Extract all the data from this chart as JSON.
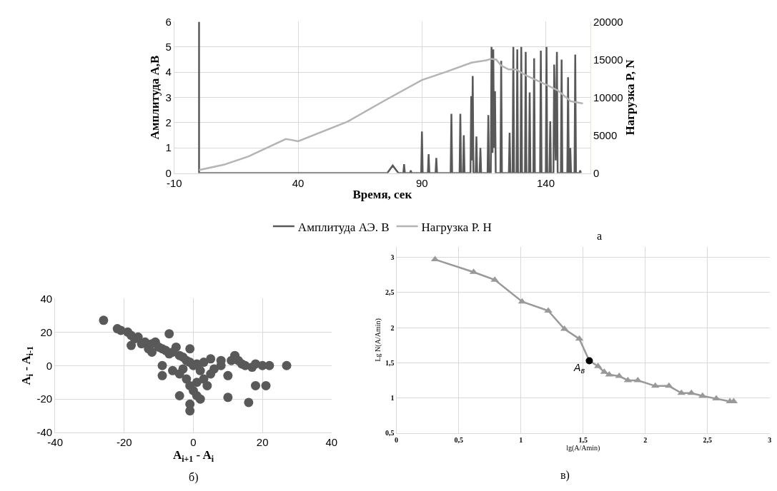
{
  "chart_data": [
    {
      "type": "line",
      "xlabel": "Время, сек",
      "ylabel": "Амплитуда A,В",
      "y2label": "Нагрузка P, N",
      "annotations": [
        "а"
      ],
      "xlim": [
        -10,
        158
      ],
      "xticks": [
        -10,
        40,
        90,
        140
      ],
      "ylim": [
        0,
        6
      ],
      "yticks": [
        0,
        1,
        2,
        3,
        4,
        5,
        6
      ],
      "y2lim": [
        0,
        20000
      ],
      "y2ticks": [
        0,
        5000,
        10000,
        15000,
        20000
      ],
      "grid": true,
      "legend": "bottom",
      "series": [
        {
          "name": "Амплитуда АЭ. В",
          "color": "#595959",
          "x": [
            0,
            0,
            0.5,
            73,
            76,
            78.2,
            80.5,
            82.5,
            82.8,
            83.1,
            85.2,
            85.5,
            85.8,
            89.7,
            90,
            90.3,
            92.4,
            92.7,
            93,
            95.5,
            95.8,
            96.1,
            101.6,
            101.9,
            102.2,
            105.2,
            105.5,
            105.8,
            106.6,
            106.9,
            107.2,
            109.6,
            109.9,
            110.2,
            110.5,
            110.8,
            111.7,
            112,
            112.3,
            113.3,
            113.6,
            113.9,
            116.5,
            116.8,
            117.1,
            117.8,
            118.1,
            118.5,
            118.8,
            119.1,
            119.5,
            119.8,
            121.7,
            122,
            122.3,
            125.1,
            125.4,
            125.7,
            126.6,
            126.9,
            127.2,
            128.2,
            128.5,
            128.8,
            129.8,
            130.1,
            130.4,
            131.6,
            131.9,
            132.2,
            133.2,
            133.5,
            133.8,
            135,
            135.3,
            135.6,
            137.7,
            138,
            138.3,
            140,
            140.3,
            140.6,
            141.5,
            141.8,
            142.1,
            143.1,
            143.4,
            144,
            144.5,
            144.8,
            146.1,
            146.4,
            146.7,
            148.7,
            149,
            149.3,
            149.6,
            149.9,
            150.2,
            151.6,
            151.9,
            152.2,
            153.6,
            153.9,
            154.2
          ],
          "values": [
            6,
            0,
            0,
            0,
            0,
            0.3,
            0,
            0,
            0.35,
            0,
            0,
            0.1,
            0,
            0,
            1.65,
            0,
            0,
            0.75,
            0,
            0,
            0.6,
            0,
            0,
            2.35,
            0,
            0,
            2.35,
            0,
            0,
            1.5,
            0,
            0,
            3.05,
            0.5,
            3.85,
            0,
            0,
            1.45,
            0,
            0,
            1.0,
            0,
            0,
            2.3,
            0,
            0,
            5.0,
            0.8,
            4.9,
            1.0,
            3.25,
            0,
            0,
            4.45,
            0,
            0,
            1.6,
            0,
            0,
            5.0,
            0,
            0,
            4.9,
            0,
            0,
            5.0,
            0,
            0,
            4.8,
            0,
            0,
            3.2,
            0,
            0,
            4.55,
            0,
            0,
            4.85,
            0,
            0,
            5.0,
            0,
            0,
            2.05,
            0,
            0,
            4.3,
            0.5,
            4.8,
            0,
            0,
            4.5,
            0,
            0,
            3.8,
            0,
            0,
            1.0,
            0,
            0,
            4.7,
            0,
            0,
            0.1,
            0
          ]
        },
        {
          "name": "Нагрузка Р. Н",
          "color": "#b4b4b4",
          "axis": "y2",
          "x": [
            0,
            10,
            20,
            35,
            37,
            40,
            60,
            75,
            90,
            100,
            110,
            116,
            118,
            120,
            122,
            125,
            128,
            132,
            140,
            145,
            150,
            155
          ],
          "values": [
            400,
            1100,
            2200,
            4500,
            4400,
            4200,
            6800,
            9600,
            12300,
            13400,
            14600,
            14900,
            15100,
            15000,
            14200,
            13700,
            13700,
            12900,
            11700,
            10900,
            9500,
            9200
          ]
        }
      ]
    },
    {
      "type": "scatter",
      "xlabel": "A$_{i+1}$ - A$_{i}$",
      "ylabel": "A$_{i}$ - A$_{i-1}$",
      "annotations": [
        "б)"
      ],
      "xlim": [
        -40,
        40
      ],
      "xticks": [
        -40,
        -20,
        0,
        20,
        40
      ],
      "ylim": [
        -40,
        40
      ],
      "yticks": [
        -40,
        -20,
        0,
        20,
        40
      ],
      "grid": true,
      "marker": "circle",
      "series": [
        {
          "color": "#595959",
          "x": [
            -26,
            -22,
            -21,
            -19,
            -18,
            -17,
            -16,
            -18,
            -15,
            -14,
            -12,
            -11,
            -10,
            -9,
            -8,
            -7,
            -6,
            -5,
            -4,
            -3,
            -1,
            -2,
            -1,
            0,
            -9,
            -9,
            -6,
            -4,
            -2,
            -1,
            0,
            1,
            2,
            -4,
            -1,
            -1,
            1,
            3,
            4,
            5,
            2,
            3,
            5,
            8,
            11,
            12,
            14,
            13,
            17,
            18,
            20,
            22,
            27,
            10,
            18,
            21,
            10,
            16,
            -7,
            -3,
            1,
            6,
            8,
            15,
            -12,
            -13
          ],
          "values": [
            27,
            22,
            21,
            20,
            18,
            16,
            17,
            12,
            13,
            14,
            13,
            14,
            11,
            10,
            9,
            7,
            8,
            11,
            6,
            5,
            10,
            3,
            2,
            0,
            0,
            -6,
            -3,
            -5,
            -8,
            -12,
            -15,
            -18,
            -20,
            -18,
            -23,
            -27,
            -10,
            -8,
            -12,
            -5,
            -3,
            2,
            4,
            3,
            3,
            6,
            1,
            3,
            -1,
            1,
            0,
            0,
            0,
            -6,
            -12,
            -12,
            -19,
            -22,
            19,
            -2,
            1,
            -2,
            0,
            0,
            8,
            10
          ]
        }
      ]
    },
    {
      "type": "line",
      "xlabel": "lg(A/Amin)",
      "ylabel": "Lg N(A/Amin)",
      "annotations": [
        "в)",
        {
          "text": "A$_{в}$",
          "x": 1.55,
          "y": 1.53
        }
      ],
      "xlim": [
        0,
        3
      ],
      "xticks": [
        0,
        {
          "value": 0.5,
          "label": "0,5"
        },
        1,
        {
          "value": 1.5,
          "label": "1,5"
        },
        2,
        {
          "value": 2.5,
          "label": "2,5"
        },
        3
      ],
      "ylim": [
        0.5,
        3.15
      ],
      "yticks": [
        {
          "value": 0.5,
          "label": "0,5"
        },
        1,
        {
          "value": 1.5,
          "label": "1,5"
        },
        2,
        {
          "value": 2.5,
          "label": "2,5"
        },
        3
      ],
      "grid": true,
      "series": [
        {
          "color": "#999999",
          "marker": "none",
          "x": [
            0.31,
            0.62,
            0.79,
            1.01,
            1.22,
            1.35,
            1.47,
            1.55,
            1.62,
            1.67,
            1.71,
            1.79,
            1.86,
            1.94,
            2.08,
            2.19,
            2.29,
            2.37,
            2.46,
            2.57,
            2.68,
            2.71
          ],
          "values": [
            2.97,
            2.79,
            2.68,
            2.37,
            2.24,
            1.98,
            1.84,
            1.53,
            1.45,
            1.37,
            1.33,
            1.31,
            1.25,
            1.25,
            1.17,
            1.17,
            1.07,
            1.07,
            1.03,
            0.99,
            0.95,
            0.95
          ]
        },
        {
          "type": "scatter",
          "color": "#999999",
          "marker": "triangle",
          "x": [
            0.31,
            0.62,
            0.79,
            1.01,
            1.22,
            1.35,
            1.47,
            1.62,
            1.67,
            1.71,
            1.79,
            1.86,
            1.94,
            2.08,
            2.19,
            2.29,
            2.37,
            2.46,
            2.57,
            2.68,
            2.71
          ],
          "values": [
            2.97,
            2.79,
            2.68,
            2.37,
            2.24,
            1.98,
            1.84,
            1.45,
            1.37,
            1.33,
            1.31,
            1.25,
            1.25,
            1.17,
            1.17,
            1.07,
            1.07,
            1.03,
            0.99,
            0.95,
            0.95
          ]
        },
        {
          "type": "scatter",
          "color": "#000000",
          "marker": "circle",
          "x": [
            1.55
          ],
          "values": [
            1.53
          ]
        }
      ]
    }
  ]
}
